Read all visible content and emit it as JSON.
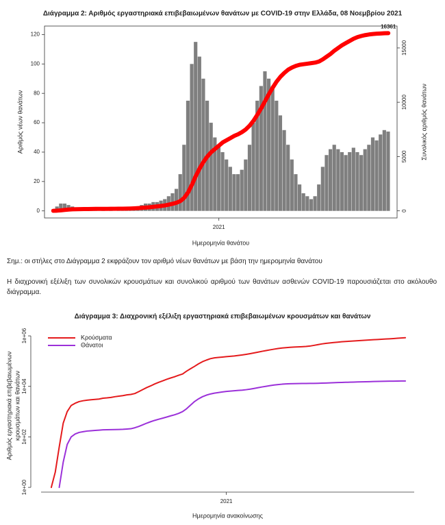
{
  "chart_data": [
    {
      "type": "bar",
      "title": "Διάγραμμα 2: Αριθμός εργαστηριακά επιβεβαιωμένων θανάτων με COVID-19 στην Ελλάδα, 08 Νοεμβρίου 2021",
      "x_label": "Ημερομηνία θανάτου",
      "y_label": "Αριθμός νέων θανάτων",
      "y2_label": "Συνολικός αριθμός θανάτων",
      "categories": [
        null,
        null,
        null,
        null,
        null,
        null,
        null,
        null,
        null,
        null,
        null,
        null,
        null,
        null,
        null,
        null,
        null,
        null,
        null,
        null,
        null,
        null,
        null,
        null,
        null,
        null,
        null,
        null,
        null,
        null,
        null,
        null,
        null,
        null,
        null,
        null,
        null,
        null,
        null,
        null,
        null,
        null,
        null,
        "2021",
        null,
        null,
        null,
        null,
        null,
        null,
        null,
        null,
        null,
        null,
        null,
        null,
        null,
        null,
        null,
        null,
        null,
        null,
        null,
        null,
        null,
        null,
        null,
        null,
        null,
        null,
        null,
        null,
        null,
        null,
        null,
        null,
        null,
        null,
        null,
        null,
        null,
        null,
        null,
        null,
        null,
        null,
        null,
        null
      ],
      "series": [
        {
          "color": "#7f7f7f",
          "values": [
            1,
            3,
            5,
            5,
            4,
            3,
            2,
            2,
            1,
            1,
            1,
            1,
            0,
            1,
            0,
            1,
            0,
            1,
            1,
            1,
            2,
            2,
            3,
            4,
            5,
            5,
            6,
            6,
            7,
            8,
            10,
            12,
            15,
            25,
            45,
            75,
            100,
            115,
            105,
            90,
            75,
            60,
            50,
            45,
            40,
            35,
            30,
            25,
            25,
            28,
            35,
            45,
            60,
            75,
            85,
            95,
            90,
            85,
            75,
            65,
            55,
            45,
            35,
            25,
            18,
            12,
            10,
            8,
            10,
            18,
            30,
            38,
            42,
            45,
            42,
            40,
            38,
            40,
            43,
            40,
            38,
            42,
            45,
            50,
            48,
            52,
            55,
            54
          ]
        },
        {
          "type": "line",
          "axis": "y2",
          "color": "#ff0000",
          "label_last": true,
          "values": [
            5,
            20,
            50,
            90,
            120,
            140,
            150,
            160,
            165,
            170,
            175,
            180,
            180,
            185,
            185,
            190,
            190,
            195,
            200,
            205,
            215,
            230,
            250,
            275,
            300,
            330,
            370,
            410,
            450,
            500,
            570,
            650,
            750,
            900,
            1200,
            1700,
            2400,
            3200,
            3900,
            4500,
            5000,
            5400,
            5700,
            6000,
            6300,
            6500,
            6700,
            6900,
            7050,
            7250,
            7500,
            7850,
            8300,
            8850,
            9450,
            10100,
            10750,
            11350,
            11900,
            12350,
            12700,
            13000,
            13200,
            13350,
            13450,
            13500,
            13550,
            13600,
            13650,
            13750,
            13950,
            14200,
            14450,
            14750,
            15000,
            15250,
            15450,
            15650,
            15850,
            16000,
            16100,
            16180,
            16240,
            16280,
            16310,
            16330,
            16350,
            16361
          ]
        }
      ],
      "ylim": [
        -4.8,
        125.8
      ],
      "yticks": [
        0,
        20,
        40,
        60,
        80,
        100,
        120
      ],
      "y2lim": [
        -654,
        17015
      ],
      "y2ticks": [
        0,
        5000,
        10000,
        15000
      ],
      "grid": false
    },
    {
      "type": "line",
      "title": "Διάγραμμα 3: Διαχρονική εξέλιξη εργαστηριακά επιβεβαιωμένων κρουσμάτων και θανάτων",
      "x_label": "Ημερομηνία ανακοίνωσης",
      "y_label": [
        "Αριθμός εργαστηριακά επιβεβαιωμένων",
        "κρουσμάτων και θανάτων"
      ],
      "categories": [
        null,
        null,
        null,
        null,
        null,
        null,
        null,
        null,
        null,
        null,
        null,
        null,
        null,
        null,
        null,
        null,
        null,
        null,
        null,
        null,
        null,
        null,
        null,
        null,
        null,
        null,
        null,
        null,
        null,
        null,
        null,
        null,
        null,
        null,
        null,
        null,
        null,
        null,
        null,
        null,
        null,
        null,
        null,
        null,
        "2021",
        null,
        null,
        null,
        null,
        null,
        null,
        null,
        null,
        null,
        null,
        null,
        null,
        null,
        null,
        null,
        null,
        null,
        null,
        null,
        null,
        null,
        null,
        null,
        null,
        null,
        null,
        null,
        null,
        null,
        null,
        null,
        null,
        null,
        null,
        null,
        null,
        null,
        null,
        null,
        null,
        null,
        null,
        null,
        null,
        null
      ],
      "series": [
        {
          "name": "Κρούσματα",
          "color": "#e41a1c",
          "values": [
            1,
            4,
            40,
            350,
            1000,
            1750,
            2150,
            2500,
            2700,
            2850,
            2950,
            3050,
            3150,
            3400,
            3500,
            3650,
            3900,
            4100,
            4300,
            4600,
            4800,
            5200,
            6200,
            7500,
            9000,
            10500,
            12500,
            14500,
            16500,
            19000,
            21500,
            24000,
            27500,
            31000,
            40000,
            50000,
            62000,
            78000,
            95000,
            110000,
            125000,
            135000,
            140000,
            145000,
            150000,
            155000,
            160000,
            168000,
            176000,
            186000,
            198000,
            212000,
            228000,
            245000,
            262000,
            280000,
            298000,
            315000,
            330000,
            342000,
            352000,
            360000,
            366000,
            372000,
            380000,
            395000,
            420000,
            450000,
            480000,
            505000,
            525000,
            545000,
            565000,
            585000,
            600000,
            615000,
            630000,
            645000,
            660000,
            675000,
            690000,
            705000,
            720000,
            735000,
            750000,
            765000,
            785000,
            805000,
            825000,
            845000
          ]
        },
        {
          "name": "Θάνατοι",
          "color": "#9b30d9",
          "values": [
            null,
            null,
            1,
            10,
            50,
            100,
            130,
            150,
            160,
            170,
            175,
            180,
            185,
            190,
            192,
            193,
            195,
            197,
            200,
            205,
            210,
            230,
            260,
            300,
            350,
            400,
            450,
            500,
            550,
            610,
            680,
            750,
            850,
            1000,
            1300,
            1800,
            2500,
            3200,
            3900,
            4500,
            5000,
            5400,
            5700,
            6000,
            6300,
            6500,
            6700,
            6900,
            7100,
            7400,
            7800,
            8300,
            8900,
            9500,
            10100,
            10700,
            11300,
            11800,
            12200,
            12500,
            12700,
            12850,
            12950,
            13000,
            13050,
            13100,
            13150,
            13250,
            13400,
            13600,
            13800,
            14000,
            14200,
            14350,
            14500,
            14650,
            14800,
            14950,
            15100,
            15250,
            15400,
            15550,
            15700,
            15850,
            15950,
            16050,
            16150,
            16250,
            16300,
            16361
          ]
        }
      ],
      "log_scale": true,
      "ylim": [
        0.65,
        4500000
      ],
      "yticks": [
        {
          "value": 1,
          "label": "1e+00"
        },
        {
          "value": 100,
          "label": "1e+02"
        },
        {
          "value": 10000,
          "label": "1e+04"
        },
        {
          "value": 1000000,
          "label": "1e+06"
        }
      ],
      "legend": "upper left",
      "grid": false
    }
  ],
  "document": {
    "note": "Σημ.: οι στήλες στο Διάγραμμα 2 εκφράζουν τον αριθμό νέων θανάτων με βάση την ημερομηνία θανάτου",
    "paragraph": "Η διαχρονική εξέλιξη των συνολικών κρουσμάτων και συνολικού αριθμού των θανάτων ασθενών COVID-19 παρουσιάζεται στο ακόλουθο διάγραμμα."
  }
}
